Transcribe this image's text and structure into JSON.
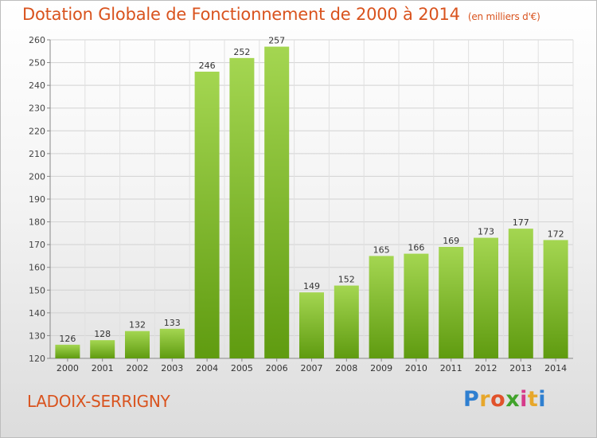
{
  "header": {
    "title": "Dotation Globale de Fonctionnement de 2000 à 2014",
    "subtitle": "(en milliers d'€)"
  },
  "footer": {
    "commune": "LADOIX-SERRIGNY",
    "logo_text": "Proxiti"
  },
  "colors": {
    "bar_top": "#a4d651",
    "bar_bottom": "#5f9b10",
    "title": "#d9531e",
    "logo": [
      "#2f7fd0",
      "#e7a72b",
      "#e1522b",
      "#41a32b",
      "#d63a8a",
      "#e7a72b",
      "#2f7fd0"
    ]
  },
  "chart_data": {
    "type": "bar",
    "title": "Dotation Globale de Fonctionnement de 2000 à 2014",
    "subtitle": "(en milliers d'€)",
    "xlabel": "",
    "ylabel": "",
    "categories": [
      "2000",
      "2001",
      "2002",
      "2003",
      "2004",
      "2005",
      "2006",
      "2007",
      "2008",
      "2009",
      "2010",
      "2011",
      "2012",
      "2013",
      "2014"
    ],
    "values": [
      126,
      128,
      132,
      133,
      246,
      252,
      257,
      149,
      152,
      165,
      166,
      169,
      173,
      177,
      172
    ],
    "ylim": [
      120,
      260
    ],
    "yticks": [
      120,
      130,
      140,
      150,
      160,
      170,
      180,
      190,
      200,
      210,
      220,
      230,
      240,
      250,
      260
    ],
    "grid": true,
    "legend": "none"
  }
}
